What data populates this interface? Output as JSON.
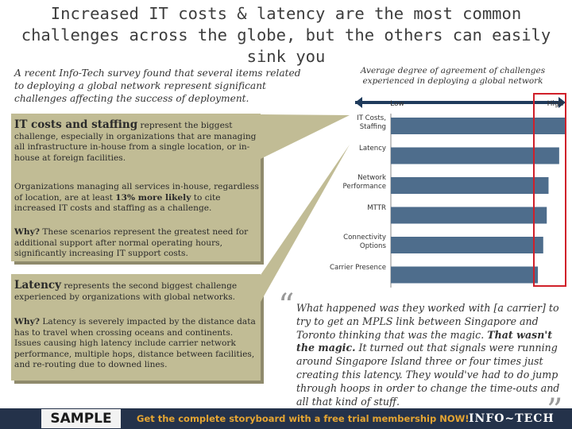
{
  "title": "Increased IT costs & latency are the most common challenges across the globe, but the others can easily sink you",
  "intro": "A recent Info-Tech survey found that several items related to deploying a global network represent significant challenges affecting the success of deployment.",
  "callouts": [
    {
      "parts": [
        {
          "text": "IT costs and staffing",
          "bold": true
        },
        {
          "text": " represent the biggest challenge, especially in organizations that are managing all infrastructure in-house from a single location, or in-house at foreign facilities.",
          "bold": false
        }
      ]
    },
    {
      "parts": [
        {
          "text": "Organizations managing all services in-house, regardless of location, are at least ",
          "bold": false
        },
        {
          "text": "13% more likely",
          "bold": true
        },
        {
          "text": " to cite increased IT costs and staffing as a challenge.",
          "bold": false
        }
      ]
    },
    {
      "parts": [
        {
          "text": "Why?",
          "bold": true
        },
        {
          "text": " These scenarios represent the greatest need for additional support after normal operating hours, significantly increasing IT support costs.",
          "bold": false
        }
      ]
    },
    {
      "parts": [
        {
          "text": "Latency",
          "bold": true
        },
        {
          "text": " represents the second biggest challenge experienced by organizations with global networks.",
          "bold": false
        }
      ]
    },
    {
      "parts": [
        {
          "text": "Why?",
          "bold": true
        },
        {
          "text": " Latency is severely impacted by the distance data has to travel when crossing oceans and continents. Issues causing high latency include carrier network performance, multiple hops, distance between facilities, and re-routing due to downed lines.",
          "bold": false
        }
      ]
    }
  ],
  "chart_data": {
    "type": "bar",
    "orientation": "horizontal",
    "title": "Average degree of agreement of challenges experienced in deploying a global network",
    "axis_low": "Low",
    "axis_high": "High",
    "categories": [
      "IT Costs, Staffing",
      "Latency",
      "Network Performance",
      "MTTR",
      "Connectivity Options",
      "Carrier Presence"
    ],
    "values": [
      99,
      95,
      89,
      88,
      86,
      83
    ],
    "color": "#4e6d8c",
    "xlim": [
      0,
      100
    ]
  },
  "quote": {
    "parts": [
      {
        "text": "What happened was they worked with [a carrier] to try to get an MPLS link between Singapore and Toronto thinking that was the magic. ",
        "bold": false
      },
      {
        "text": "That wasn't the magic.",
        "bold": true
      },
      {
        "text": " It turned out that signals were running around Singapore Island three or four times just creating this latency. They would've had to do jump through hoops in order to change the time-outs and all that kind of stuff.",
        "bold": false
      }
    ]
  },
  "footer": {
    "sample": "SAMPLE",
    "cta": "Get the complete storyboard with a free trial membership NOW!",
    "logo": "INFO~TECH"
  }
}
